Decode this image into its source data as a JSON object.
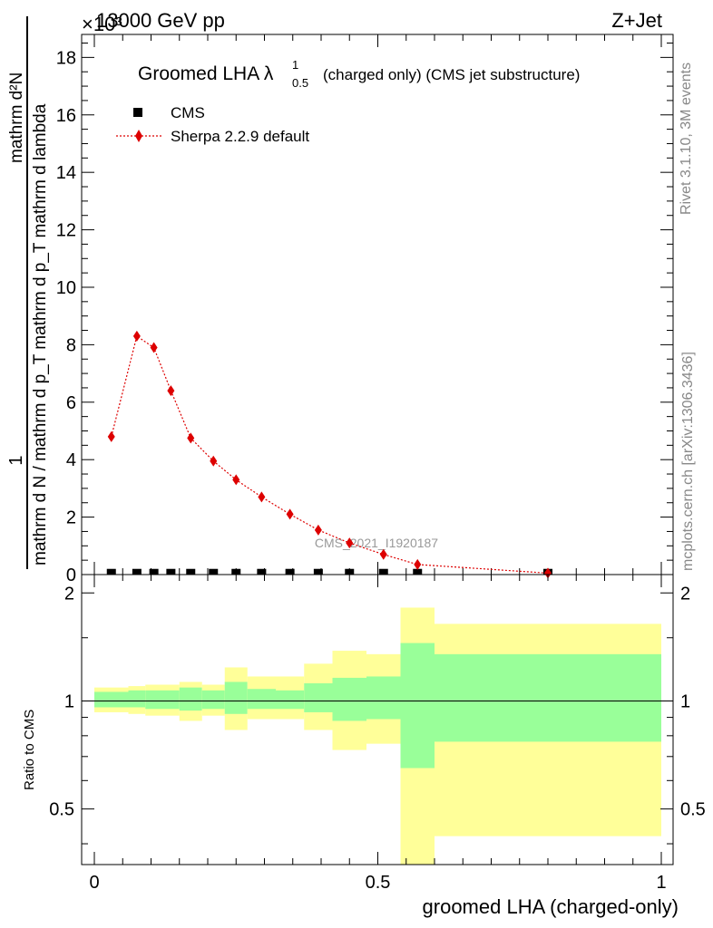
{
  "header": {
    "energy_label": "13000 GeV pp",
    "exponent_label": "×10³",
    "process_label": "Z+Jet"
  },
  "side_labels": {
    "rivet": "Rivet 3.1.10,  3M events",
    "mcplots": "mcplots.cern.ch [arXiv:1306.3436]"
  },
  "chart_data": [
    {
      "type": "scatter",
      "panel": "main",
      "title_main": "Groomed LHA λ",
      "title_sup": "1",
      "title_sub": "0.5",
      "title_rest": "(charged only) (CMS jet substructure)",
      "ylabel_numerator": "1",
      "ylabel_denominator": "mathrm d N / mathrm d p_T mathrm d p_T mathrm d lambda",
      "ylabel_sub": "T",
      "ylabel_fraction_top": "mathrm d²N",
      "watermark": "CMS_2021_I1920187",
      "xlim": [
        0,
        1
      ],
      "ylim": [
        0,
        18.8
      ],
      "yticks": [
        0,
        2,
        4,
        6,
        8,
        10,
        12,
        14,
        16,
        18
      ],
      "ytick_labels": [
        "0",
        "2",
        "4",
        "6",
        "8",
        "10",
        "12",
        "14",
        "16",
        "18"
      ],
      "legend": [
        {
          "name": "CMS",
          "marker": "square",
          "color": "#000000"
        },
        {
          "name": "Sherpa 2.2.9 default",
          "marker": "diamond",
          "color": "#dd0000"
        }
      ],
      "series": [
        {
          "name": "CMS",
          "x": [
            0.03,
            0.075,
            0.105,
            0.135,
            0.17,
            0.21,
            0.25,
            0.295,
            0.345,
            0.395,
            0.45,
            0.51,
            0.57,
            0.8
          ],
          "y": [
            0.04,
            0.04,
            0.04,
            0.04,
            0.04,
            0.04,
            0.04,
            0.04,
            0.04,
            0.04,
            0.04,
            0.04,
            0.04,
            0.04
          ]
        },
        {
          "name": "Sherpa 2.2.9 default",
          "x": [
            0.03,
            0.075,
            0.105,
            0.135,
            0.17,
            0.21,
            0.25,
            0.295,
            0.345,
            0.395,
            0.45,
            0.51,
            0.57,
            0.8
          ],
          "y": [
            4.8,
            8.3,
            7.9,
            6.4,
            4.75,
            3.95,
            3.3,
            2.7,
            2.1,
            1.55,
            1.1,
            0.7,
            0.35,
            0.05
          ]
        }
      ]
    },
    {
      "type": "area",
      "panel": "ratio",
      "ylabel": "Ratio to CMS",
      "xlabel": "groomed LHA (charged-only)",
      "xlim": [
        0,
        1
      ],
      "ylim": [
        0.35,
        2.25
      ],
      "xticks": [
        0,
        0.5,
        1
      ],
      "xtick_labels": [
        "0",
        "0.5",
        "1"
      ],
      "yticks": [
        0.5,
        1,
        2
      ],
      "ytick_labels": [
        "0.5",
        "1",
        "2"
      ],
      "bins": [
        {
          "lo": 0.0,
          "hi": 0.06,
          "green": [
            0.96,
            1.06
          ],
          "yellow": [
            0.93,
            1.09
          ]
        },
        {
          "lo": 0.06,
          "hi": 0.09,
          "green": [
            0.96,
            1.07
          ],
          "yellow": [
            0.92,
            1.1
          ]
        },
        {
          "lo": 0.09,
          "hi": 0.12,
          "green": [
            0.95,
            1.07
          ],
          "yellow": [
            0.91,
            1.11
          ]
        },
        {
          "lo": 0.12,
          "hi": 0.15,
          "green": [
            0.95,
            1.07
          ],
          "yellow": [
            0.91,
            1.11
          ]
        },
        {
          "lo": 0.15,
          "hi": 0.19,
          "green": [
            0.94,
            1.09
          ],
          "yellow": [
            0.88,
            1.13
          ]
        },
        {
          "lo": 0.19,
          "hi": 0.23,
          "green": [
            0.95,
            1.07
          ],
          "yellow": [
            0.91,
            1.11
          ]
        },
        {
          "lo": 0.23,
          "hi": 0.27,
          "green": [
            0.92,
            1.13
          ],
          "yellow": [
            0.83,
            1.24
          ]
        },
        {
          "lo": 0.27,
          "hi": 0.32,
          "green": [
            0.95,
            1.08
          ],
          "yellow": [
            0.89,
            1.17
          ]
        },
        {
          "lo": 0.32,
          "hi": 0.37,
          "green": [
            0.95,
            1.07
          ],
          "yellow": [
            0.89,
            1.17
          ]
        },
        {
          "lo": 0.37,
          "hi": 0.42,
          "green": [
            0.93,
            1.12
          ],
          "yellow": [
            0.83,
            1.27
          ]
        },
        {
          "lo": 0.42,
          "hi": 0.48,
          "green": [
            0.88,
            1.16
          ],
          "yellow": [
            0.73,
            1.38
          ]
        },
        {
          "lo": 0.48,
          "hi": 0.54,
          "green": [
            0.89,
            1.17
          ],
          "yellow": [
            0.76,
            1.35
          ]
        },
        {
          "lo": 0.54,
          "hi": 0.6,
          "green": [
            0.65,
            1.45
          ],
          "yellow": [
            0.35,
            1.82
          ]
        },
        {
          "lo": 0.6,
          "hi": 1.0,
          "green": [
            0.77,
            1.35
          ],
          "yellow": [
            0.42,
            1.64
          ]
        }
      ],
      "colors": {
        "green": "#99ff99",
        "yellow": "#ffff99",
        "line": "#000000"
      }
    }
  ]
}
